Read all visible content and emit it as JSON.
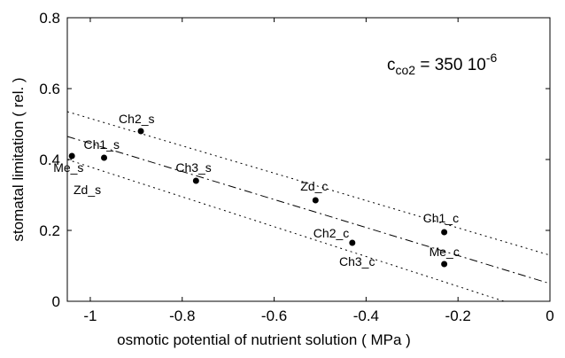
{
  "chart_data": {
    "type": "scatter",
    "title": "",
    "xlabel": "osmotic potential of nutrient solution ( MPa )",
    "ylabel": "stomatal limitation ( rel. )",
    "xlim": [
      -1.05,
      0
    ],
    "ylim": [
      0,
      0.8
    ],
    "x_ticks": [
      "-1",
      "-0.8",
      "-0.6",
      "-0.4",
      "-0.2",
      "0"
    ],
    "y_ticks": [
      "0",
      "0.2",
      "0.4",
      "0.6",
      "0.8"
    ],
    "grid": false,
    "annotation": {
      "base": "c",
      "subscript": "co2",
      "text": " = 350 10",
      "superscript": "-6"
    },
    "points": [
      {
        "x": -1.04,
        "y": 0.41,
        "label": "Me_s"
      },
      {
        "x": -0.97,
        "y": 0.405,
        "label": "Ch1_s"
      },
      {
        "x": -0.89,
        "y": 0.48,
        "label": "Ch2_s"
      },
      {
        "x": -0.77,
        "y": 0.34,
        "label": "Ch3_s"
      },
      {
        "x": -0.51,
        "y": 0.285,
        "label": "Zd_c"
      },
      {
        "x": -0.43,
        "y": 0.165,
        "label": "Ch2_c"
      },
      {
        "x": -0.23,
        "y": 0.195,
        "label": "Ch1_c"
      },
      {
        "x": -0.23,
        "y": 0.105,
        "label": "Me_c"
      }
    ],
    "extra_labels": [
      "Zd_s",
      "Ch3_c"
    ],
    "lines": [
      {
        "style": "dash-dot",
        "x": [
          -1.05,
          0
        ],
        "y": [
          0.465,
          0.05
        ]
      },
      {
        "style": "dotted",
        "x": [
          -1.05,
          0
        ],
        "y": [
          0.535,
          0.13
        ]
      },
      {
        "style": "dotted",
        "x": [
          -1.05,
          -0.1
        ],
        "y": [
          0.4,
          0
        ]
      }
    ]
  }
}
